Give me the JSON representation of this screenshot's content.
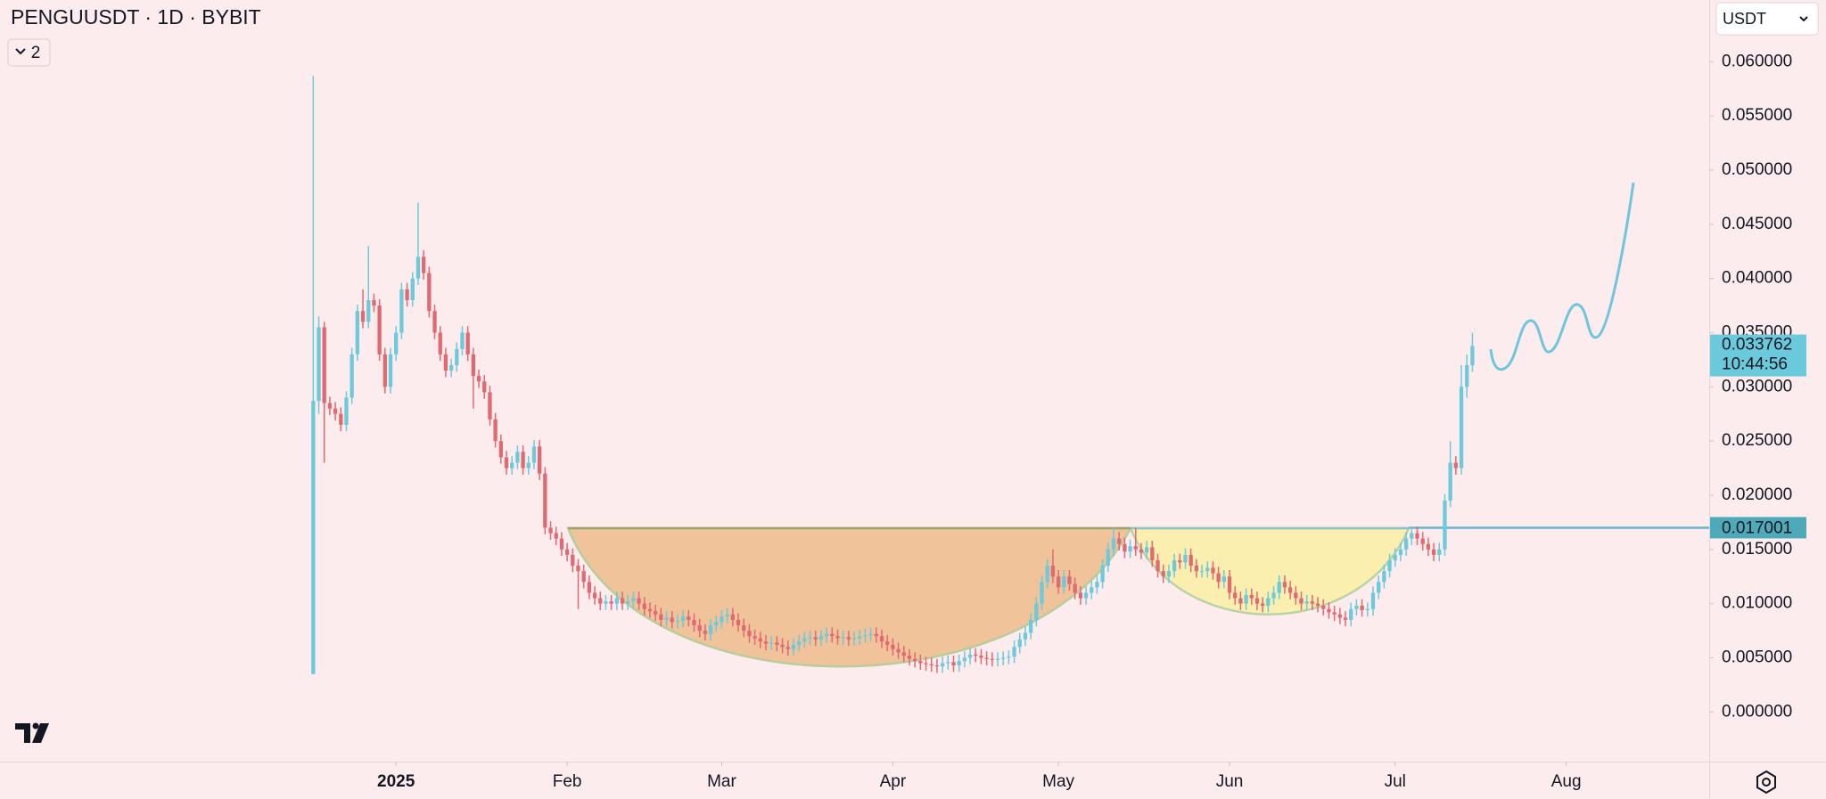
{
  "chart_data": {
    "type": "candlestick",
    "title": "PENGUUSDT · 1D · BYBIT",
    "countdown": "10:44:56",
    "colors": {
      "up": "#6ccadb",
      "down": "#e06a72"
    },
    "xlim": [
      -56.75,
      252.9
    ],
    "ylim": [
      -0.00458,
      0.0657
    ],
    "xticks": [
      {
        "value": 15,
        "label": "2025"
      },
      {
        "value": 46,
        "label": "Feb"
      },
      {
        "value": 74,
        "label": "Mar"
      },
      {
        "value": 105,
        "label": "Apr"
      },
      {
        "value": 135,
        "label": "May"
      },
      {
        "value": 166,
        "label": "Jun"
      },
      {
        "value": 196,
        "label": "Jul"
      },
      {
        "value": 227,
        "label": "Aug"
      }
    ],
    "yticks": [
      {
        "value": 0,
        "label": "0.000000"
      },
      {
        "value": 0.005,
        "label": "0.005000"
      },
      {
        "value": 0.01,
        "label": "0.010000"
      },
      {
        "value": 0.015,
        "label": "0.015000"
      },
      {
        "value": 0.02,
        "label": "0.020000"
      },
      {
        "value": 0.025,
        "label": "0.025000"
      },
      {
        "value": 0.03,
        "label": "0.030000"
      },
      {
        "value": 0.035,
        "label": "0.035000"
      },
      {
        "value": 0.04,
        "label": "0.040000"
      },
      {
        "value": 0.045,
        "label": "0.045000"
      },
      {
        "value": 0.05,
        "label": "0.050000"
      },
      {
        "value": 0.055,
        "label": "0.055000"
      },
      {
        "value": 0.06,
        "label": "0.060000"
      }
    ],
    "resistance": 0.017001,
    "open": [
      0.0035,
      0.0287,
      0.0355,
      0.0285,
      0.028,
      0.0275,
      0.0265,
      0.029,
      0.033,
      0.037,
      0.036,
      0.038,
      0.0375,
      0.033,
      0.03,
      0.033,
      0.035,
      0.039,
      0.038,
      0.04,
      0.042,
      0.0405,
      0.037,
      0.035,
      0.033,
      0.0315,
      0.032,
      0.0335,
      0.035,
      0.033,
      0.031,
      0.0305,
      0.0295,
      0.027,
      0.025,
      0.0235,
      0.0225,
      0.023,
      0.024,
      0.0225,
      0.023,
      0.0245,
      0.022,
      0.017,
      0.0165,
      0.016,
      0.015,
      0.0145,
      0.0135,
      0.013,
      0.012,
      0.011,
      0.0105,
      0.01,
      0.0102,
      0.01,
      0.0105,
      0.01,
      0.0102,
      0.0105,
      0.01,
      0.0095,
      0.0093,
      0.009,
      0.0085,
      0.0087,
      0.0083,
      0.0084,
      0.0088,
      0.0085,
      0.008,
      0.0075,
      0.0072,
      0.008,
      0.0083,
      0.0088,
      0.009,
      0.0085,
      0.008,
      0.0075,
      0.007,
      0.0068,
      0.0065,
      0.0063,
      0.0064,
      0.0062,
      0.006,
      0.0058,
      0.0062,
      0.0065,
      0.0068,
      0.0069,
      0.0067,
      0.007,
      0.0072,
      0.007,
      0.0068,
      0.0069,
      0.0067,
      0.0068,
      0.007,
      0.0071,
      0.0072,
      0.007,
      0.0065,
      0.0062,
      0.0058,
      0.0055,
      0.0052,
      0.0049,
      0.0047,
      0.0045,
      0.0044,
      0.0043,
      0.0042,
      0.0045,
      0.0046,
      0.0043,
      0.0047,
      0.005,
      0.0053,
      0.0052,
      0.005,
      0.0049,
      0.0048,
      0.0049,
      0.005,
      0.0051,
      0.006,
      0.0067,
      0.0073,
      0.0085,
      0.01,
      0.012,
      0.0135,
      0.0125,
      0.0115,
      0.0125,
      0.0118,
      0.011,
      0.0105,
      0.011,
      0.0115,
      0.012,
      0.0135,
      0.015,
      0.016,
      0.0155,
      0.0148,
      0.0153,
      0.015,
      0.0147,
      0.0152,
      0.014,
      0.013,
      0.0125,
      0.013,
      0.014,
      0.0138,
      0.0145,
      0.0135,
      0.013,
      0.013,
      0.0133,
      0.0128,
      0.012,
      0.0125,
      0.011,
      0.0105,
      0.01,
      0.0108,
      0.0105,
      0.01,
      0.0098,
      0.0105,
      0.011,
      0.012,
      0.0115,
      0.011,
      0.0105,
      0.01,
      0.0102,
      0.01,
      0.0098,
      0.0095,
      0.0092,
      0.009,
      0.0087,
      0.0085,
      0.0095,
      0.0098,
      0.0094,
      0.0095,
      0.011,
      0.012,
      0.013,
      0.014,
      0.0145,
      0.015,
      0.016,
      0.0165,
      0.016,
      0.0155,
      0.015,
      0.0145,
      0.015,
      0.0195,
      0.023,
      0.0225,
      0.03,
      0.032
    ],
    "high": [
      0.0587,
      0.0365,
      0.036,
      0.0291,
      0.0286,
      0.0281,
      0.0296,
      0.0336,
      0.0376,
      0.039,
      0.043,
      0.0386,
      0.0381,
      0.0336,
      0.0336,
      0.0356,
      0.0396,
      0.0396,
      0.0406,
      0.047,
      0.0426,
      0.0411,
      0.0376,
      0.0356,
      0.0336,
      0.0326,
      0.0341,
      0.0356,
      0.0356,
      0.0336,
      0.0316,
      0.0311,
      0.0301,
      0.0276,
      0.0256,
      0.0241,
      0.0236,
      0.0246,
      0.0246,
      0.0236,
      0.0251,
      0.0251,
      0.0226,
      0.0176,
      0.0171,
      0.0166,
      0.0156,
      0.0151,
      0.0141,
      0.0136,
      0.0126,
      0.0116,
      0.0111,
      0.0108,
      0.0108,
      0.0111,
      0.0111,
      0.0108,
      0.0111,
      0.0111,
      0.0106,
      0.0101,
      0.0099,
      0.0096,
      0.0093,
      0.0093,
      0.009,
      0.0094,
      0.0094,
      0.0091,
      0.0086,
      0.0081,
      0.0086,
      0.0089,
      0.0094,
      0.0096,
      0.0096,
      0.0091,
      0.0086,
      0.0081,
      0.0076,
      0.0074,
      0.0071,
      0.007,
      0.007,
      0.0068,
      0.0066,
      0.0068,
      0.0071,
      0.0074,
      0.0075,
      0.0075,
      0.0076,
      0.0078,
      0.0078,
      0.0076,
      0.0075,
      0.0075,
      0.0074,
      0.0076,
      0.0077,
      0.0078,
      0.0078,
      0.0076,
      0.0071,
      0.0068,
      0.0064,
      0.0061,
      0.0058,
      0.0055,
      0.0053,
      0.0051,
      0.005,
      0.0049,
      0.0051,
      0.0052,
      0.0052,
      0.0053,
      0.0056,
      0.0059,
      0.0059,
      0.0058,
      0.0056,
      0.0055,
      0.0055,
      0.0056,
      0.0057,
      0.0066,
      0.0073,
      0.0079,
      0.0091,
      0.0106,
      0.0126,
      0.0141,
      0.015,
      0.0131,
      0.0131,
      0.0131,
      0.0124,
      0.0116,
      0.0116,
      0.0121,
      0.0126,
      0.0141,
      0.0156,
      0.017,
      0.0166,
      0.0161,
      0.0159,
      0.017,
      0.0156,
      0.0158,
      0.0158,
      0.0146,
      0.0136,
      0.0136,
      0.0146,
      0.0146,
      0.0151,
      0.0151,
      0.0141,
      0.0136,
      0.0139,
      0.0139,
      0.0134,
      0.0131,
      0.0131,
      0.0116,
      0.0111,
      0.0114,
      0.0114,
      0.0111,
      0.0106,
      0.0111,
      0.0116,
      0.0126,
      0.0126,
      0.0121,
      0.0116,
      0.0111,
      0.0108,
      0.0108,
      0.0106,
      0.0104,
      0.0101,
      0.0098,
      0.0096,
      0.0093,
      0.0101,
      0.0104,
      0.0104,
      0.0101,
      0.0116,
      0.0126,
      0.0136,
      0.0146,
      0.0151,
      0.0156,
      0.0166,
      0.0171,
      0.0171,
      0.0166,
      0.0161,
      0.0156,
      0.0156,
      0.0201,
      0.025,
      0.0236,
      0.032,
      0.033,
      0.035
    ],
    "low": [
      0.0035,
      0.0275,
      0.023,
      0.0274,
      0.0269,
      0.0259,
      0.0259,
      0.0284,
      0.0324,
      0.0354,
      0.0354,
      0.0369,
      0.0324,
      0.0294,
      0.0294,
      0.0324,
      0.0344,
      0.0374,
      0.0374,
      0.0394,
      0.0399,
      0.0364,
      0.0344,
      0.0324,
      0.0309,
      0.0309,
      0.0314,
      0.0329,
      0.0324,
      0.028,
      0.0299,
      0.0289,
      0.0264,
      0.0244,
      0.0229,
      0.0219,
      0.0219,
      0.0224,
      0.0219,
      0.0219,
      0.0224,
      0.0214,
      0.0164,
      0.0159,
      0.0154,
      0.0144,
      0.0139,
      0.0129,
      0.0095,
      0.0114,
      0.0104,
      0.0099,
      0.0094,
      0.0094,
      0.0094,
      0.0094,
      0.0094,
      0.0094,
      0.0096,
      0.0094,
      0.0089,
      0.0087,
      0.0084,
      0.0079,
      0.0079,
      0.0077,
      0.0077,
      0.0078,
      0.0079,
      0.0074,
      0.0069,
      0.0066,
      0.0066,
      0.0074,
      0.0077,
      0.0082,
      0.0079,
      0.0074,
      0.0069,
      0.0064,
      0.0062,
      0.0059,
      0.0057,
      0.0057,
      0.0056,
      0.0054,
      0.0052,
      0.0052,
      0.0056,
      0.0059,
      0.0062,
      0.0061,
      0.0061,
      0.0064,
      0.0064,
      0.0062,
      0.0062,
      0.0061,
      0.0061,
      0.0062,
      0.0064,
      0.0065,
      0.0064,
      0.0059,
      0.0056,
      0.0052,
      0.0049,
      0.0046,
      0.0043,
      0.0041,
      0.0039,
      0.0038,
      0.0037,
      0.0036,
      0.0036,
      0.0039,
      0.0037,
      0.0037,
      0.0041,
      0.0044,
      0.0046,
      0.0044,
      0.0043,
      0.0042,
      0.0042,
      0.0043,
      0.0044,
      0.0045,
      0.0054,
      0.0061,
      0.0067,
      0.0079,
      0.0094,
      0.0114,
      0.0119,
      0.0109,
      0.0109,
      0.0112,
      0.0104,
      0.0099,
      0.0099,
      0.0104,
      0.0109,
      0.0114,
      0.0129,
      0.0144,
      0.0149,
      0.0142,
      0.0142,
      0.0144,
      0.0141,
      0.0141,
      0.0134,
      0.0124,
      0.0119,
      0.0119,
      0.0124,
      0.0132,
      0.0132,
      0.0129,
      0.0124,
      0.0124,
      0.0124,
      0.0122,
      0.0114,
      0.0114,
      0.0104,
      0.0099,
      0.0094,
      0.0094,
      0.0099,
      0.0094,
      0.0092,
      0.0092,
      0.0099,
      0.0104,
      0.0109,
      0.0104,
      0.0099,
      0.0094,
      0.0094,
      0.0094,
      0.0092,
      0.0089,
      0.0086,
      0.0084,
      0.0081,
      0.0079,
      0.0079,
      0.0089,
      0.0088,
      0.0088,
      0.0089,
      0.0104,
      0.0114,
      0.0124,
      0.0134,
      0.0139,
      0.0144,
      0.0154,
      0.0154,
      0.0149,
      0.0144,
      0.0139,
      0.0139,
      0.0144,
      0.0189,
      0.0219,
      0.0219,
      0.029,
      0.0314
    ],
    "close": [
      0.0287,
      0.0355,
      0.0285,
      0.028,
      0.0275,
      0.0265,
      0.029,
      0.033,
      0.037,
      0.036,
      0.038,
      0.0375,
      0.033,
      0.03,
      0.033,
      0.035,
      0.039,
      0.038,
      0.04,
      0.042,
      0.0405,
      0.037,
      0.035,
      0.033,
      0.0315,
      0.032,
      0.0335,
      0.035,
      0.033,
      0.031,
      0.0305,
      0.0295,
      0.027,
      0.025,
      0.0235,
      0.0225,
      0.023,
      0.024,
      0.0225,
      0.023,
      0.0245,
      0.022,
      0.017,
      0.0165,
      0.016,
      0.015,
      0.0145,
      0.0135,
      0.013,
      0.012,
      0.011,
      0.0105,
      0.01,
      0.0102,
      0.01,
      0.0105,
      0.01,
      0.0102,
      0.0105,
      0.01,
      0.0095,
      0.0093,
      0.009,
      0.0085,
      0.0087,
      0.0083,
      0.0084,
      0.0088,
      0.0085,
      0.008,
      0.0075,
      0.0072,
      0.008,
      0.0083,
      0.0088,
      0.009,
      0.0085,
      0.008,
      0.0075,
      0.007,
      0.0068,
      0.0065,
      0.0063,
      0.0064,
      0.0062,
      0.006,
      0.0058,
      0.0062,
      0.0065,
      0.0068,
      0.0069,
      0.0067,
      0.007,
      0.0072,
      0.007,
      0.0068,
      0.0069,
      0.0067,
      0.0068,
      0.007,
      0.0071,
      0.0072,
      0.007,
      0.0065,
      0.0062,
      0.0058,
      0.0055,
      0.0052,
      0.0049,
      0.0047,
      0.0045,
      0.0044,
      0.0043,
      0.0042,
      0.0045,
      0.0046,
      0.0043,
      0.0047,
      0.005,
      0.0053,
      0.0052,
      0.005,
      0.0049,
      0.0048,
      0.0049,
      0.005,
      0.0051,
      0.006,
      0.0067,
      0.0073,
      0.0085,
      0.01,
      0.012,
      0.0135,
      0.0125,
      0.0115,
      0.0125,
      0.0118,
      0.011,
      0.0105,
      0.011,
      0.0115,
      0.012,
      0.0135,
      0.015,
      0.016,
      0.0155,
      0.0148,
      0.0153,
      0.015,
      0.0147,
      0.0152,
      0.014,
      0.013,
      0.0125,
      0.013,
      0.014,
      0.0138,
      0.0145,
      0.0135,
      0.013,
      0.013,
      0.0133,
      0.0128,
      0.012,
      0.0125,
      0.011,
      0.0105,
      0.01,
      0.0108,
      0.0105,
      0.01,
      0.0098,
      0.0105,
      0.011,
      0.012,
      0.0115,
      0.011,
      0.0105,
      0.01,
      0.0102,
      0.01,
      0.0098,
      0.0095,
      0.0092,
      0.009,
      0.0087,
      0.0085,
      0.0095,
      0.0098,
      0.0094,
      0.0095,
      0.011,
      0.012,
      0.013,
      0.014,
      0.0145,
      0.015,
      0.016,
      0.0165,
      0.016,
      0.0155,
      0.015,
      0.0145,
      0.015,
      0.0195,
      0.023,
      0.0225,
      0.03,
      0.032,
      0.033762
    ]
  },
  "toolbar": {
    "collapsed_count": 2,
    "currency": "USDT"
  }
}
